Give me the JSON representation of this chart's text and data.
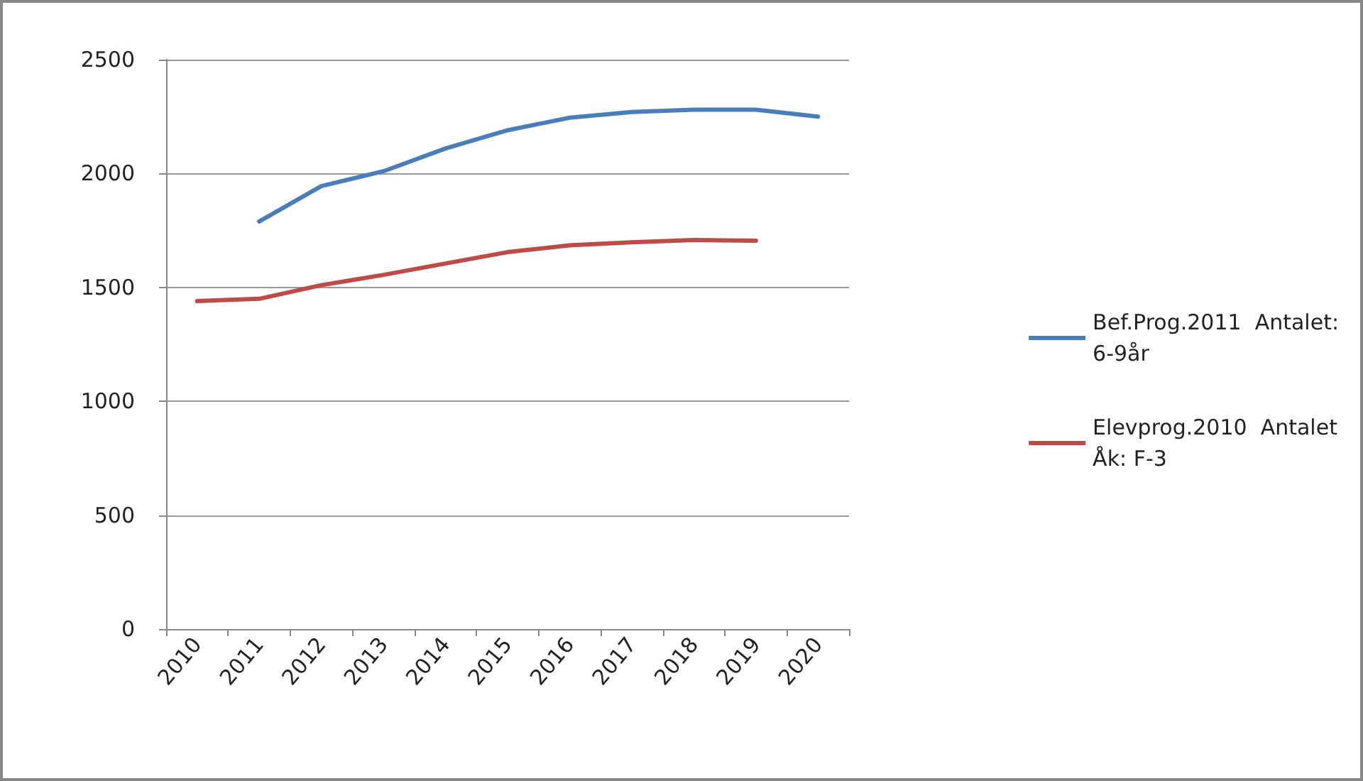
{
  "chart_data": {
    "type": "line",
    "categories": [
      "2010",
      "2011",
      "2012",
      "2013",
      "2014",
      "2015",
      "2016",
      "2017",
      "2018",
      "2019",
      "2020"
    ],
    "series": [
      {
        "name": "Bef.Prog.2011  Antalet:\n6-9år",
        "color": "#4a7ebb",
        "values": [
          null,
          1790,
          1945,
          2010,
          2110,
          2190,
          2245,
          2270,
          2280,
          2280,
          2250
        ]
      },
      {
        "name": "Elevprog.2010  Antalet\nÅk: F-3",
        "color": "#be4b48",
        "values": [
          1440,
          1450,
          1510,
          1555,
          1605,
          1655,
          1685,
          1698,
          1708,
          1705,
          null
        ]
      }
    ],
    "ylim": [
      0,
      2500
    ],
    "yticks": [
      0,
      500,
      1000,
      1500,
      2000,
      2500
    ],
    "grid": "y",
    "legend": "right",
    "marker": "none",
    "line_style": "solid"
  }
}
